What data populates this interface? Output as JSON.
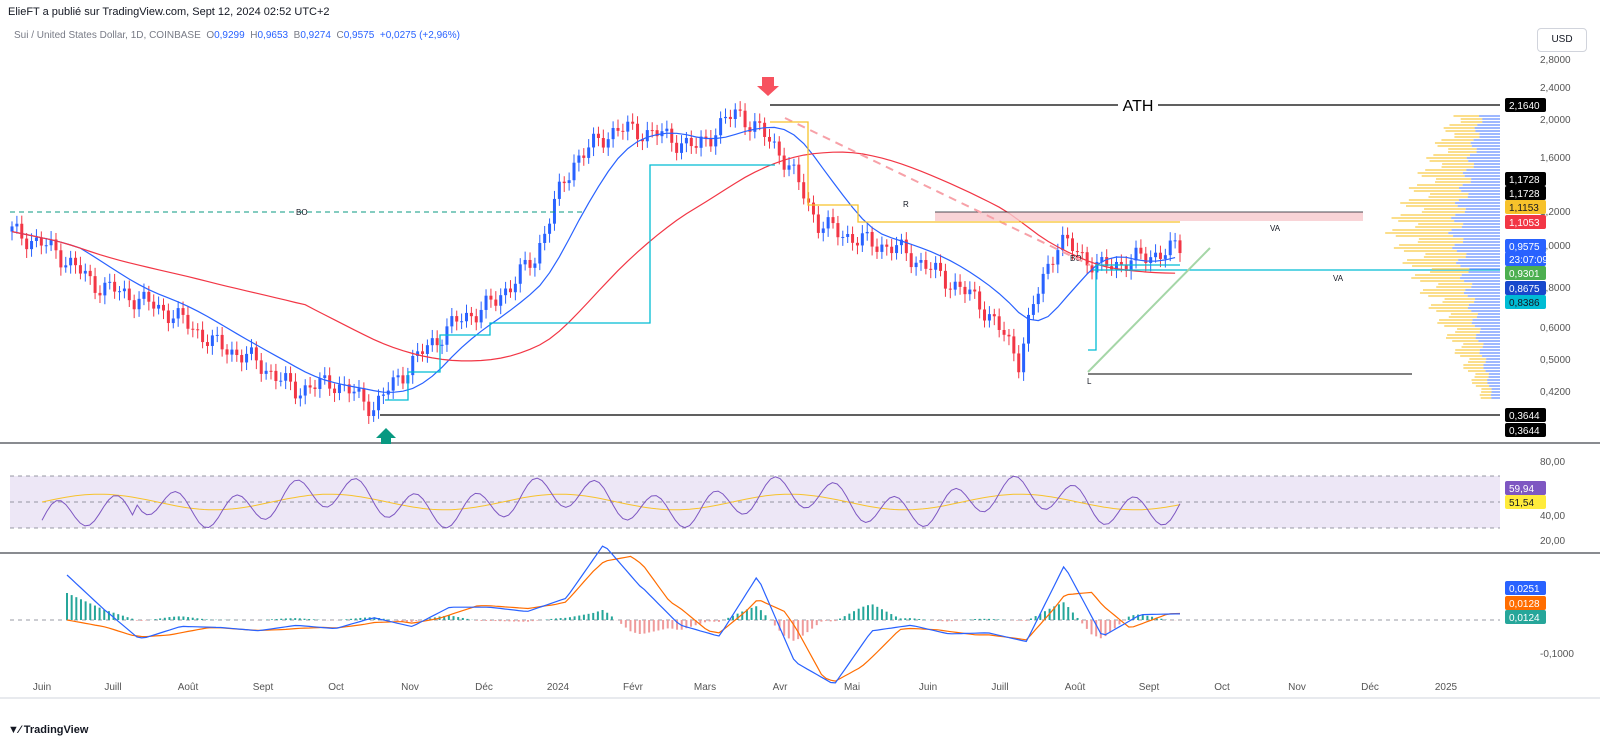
{
  "header": {
    "publish_line": "ElieFT a publié sur TradingView.com, Sept 12, 2024 02:52 UTC+2",
    "symbol": "Sui / United States Dollar, 1D, COINBASE",
    "o_label": "O",
    "o_value": "0,9299",
    "h_label": "H",
    "h_value": "0,9653",
    "b_label": "B",
    "b_value": "0,9274",
    "c_label": "C",
    "c_value": "0,9575",
    "change": "+0,0275 (+2,96%)"
  },
  "currency_button": "USD",
  "footer_logo": "TradingView",
  "chart_data": [
    {
      "type": "line",
      "name": "price",
      "x": [
        "Juin",
        "Juill",
        "Août",
        "Sept",
        "Oct",
        "Nov",
        "Déc",
        "2024",
        "Févr",
        "Mars",
        "Avr",
        "Mai",
        "Juin",
        "Juill",
        "Août",
        "Sept",
        "Oct",
        "Nov",
        "Déc",
        "2025"
      ],
      "price_axis_ticks": [
        "2,4000",
        "2,0000",
        "1,6000",
        "1,2000",
        "1,0000",
        "0,8000",
        "0,6000",
        "0,5000",
        "0,4200"
      ],
      "price_axis_extra_ticks": [
        "2,8000"
      ],
      "close_series": [
        1.05,
        0.95,
        0.78,
        0.72,
        0.65,
        0.55,
        0.5,
        0.42,
        0.44,
        0.38,
        0.5,
        0.62,
        0.7,
        0.9,
        1.6,
        1.9,
        1.85,
        1.7,
        2.1,
        1.7,
        1.1,
        1.0,
        0.95,
        0.82,
        0.7,
        0.5,
        1.0,
        0.85,
        0.9,
        0.9575
      ],
      "annotations": {
        "ath_label": "ATH",
        "bo_left": "BO",
        "bo_right": "BO",
        "va_upper": "VA",
        "va_lower": "VA",
        "r_label": "R",
        "l_label": "L"
      },
      "price_tags": [
        {
          "value": "2,1640",
          "bg": "#000000",
          "fg": "#ffffff"
        },
        {
          "value": "1,1728",
          "bg": "#000000",
          "fg": "#ffffff"
        },
        {
          "value": "1,1728",
          "bg": "#000000",
          "fg": "#ffffff"
        },
        {
          "value": "1,1153",
          "bg": "#f7c22b",
          "fg": "#131722"
        },
        {
          "value": "1,1053",
          "bg": "#f23645",
          "fg": "#ffffff"
        },
        {
          "value": "0,9575",
          "bg": "#2962ff",
          "fg": "#ffffff"
        },
        {
          "value": "23:07:09",
          "bg": "#2962ff",
          "fg": "#ffffff"
        },
        {
          "value": "0,9301",
          "bg": "#4caf50",
          "fg": "#ffffff"
        },
        {
          "value": "0,8675",
          "bg": "#1848cc",
          "fg": "#ffffff"
        },
        {
          "value": "0,8386",
          "bg": "#00bcd4",
          "fg": "#131722"
        },
        {
          "value": "0,3644",
          "bg": "#000000",
          "fg": "#ffffff"
        },
        {
          "value": "0,3644",
          "bg": "#000000",
          "fg": "#ffffff"
        }
      ]
    },
    {
      "type": "line",
      "name": "RSI",
      "y_ticks": [
        "80,00",
        "40,00",
        "20,00"
      ],
      "values_tag": [
        {
          "value": "59,94",
          "bg": "#7e57c2",
          "fg": "#ffffff"
        },
        {
          "value": "51,54",
          "bg": "#ffeb3b",
          "fg": "#131722"
        }
      ],
      "ylim": [
        20,
        80
      ]
    },
    {
      "type": "line",
      "name": "MACD",
      "y_ticks": [
        "-0,1000"
      ],
      "values_tag": [
        {
          "value": "0,0251",
          "bg": "#2962ff",
          "fg": "#ffffff"
        },
        {
          "value": "0,0128",
          "bg": "#ff6d00",
          "fg": "#ffffff"
        },
        {
          "value": "0,0124",
          "bg": "#26a69a",
          "fg": "#ffffff"
        }
      ]
    }
  ],
  "colors": {
    "up": "#2962ff",
    "down": "#f23645",
    "ema_blue": "#2962ff",
    "ema_red": "#f23645",
    "rsi_line": "#7e57c2",
    "rsi_band": "#ede7f6",
    "green_arrow": "#089981",
    "red_arrow": "#f7525f"
  }
}
